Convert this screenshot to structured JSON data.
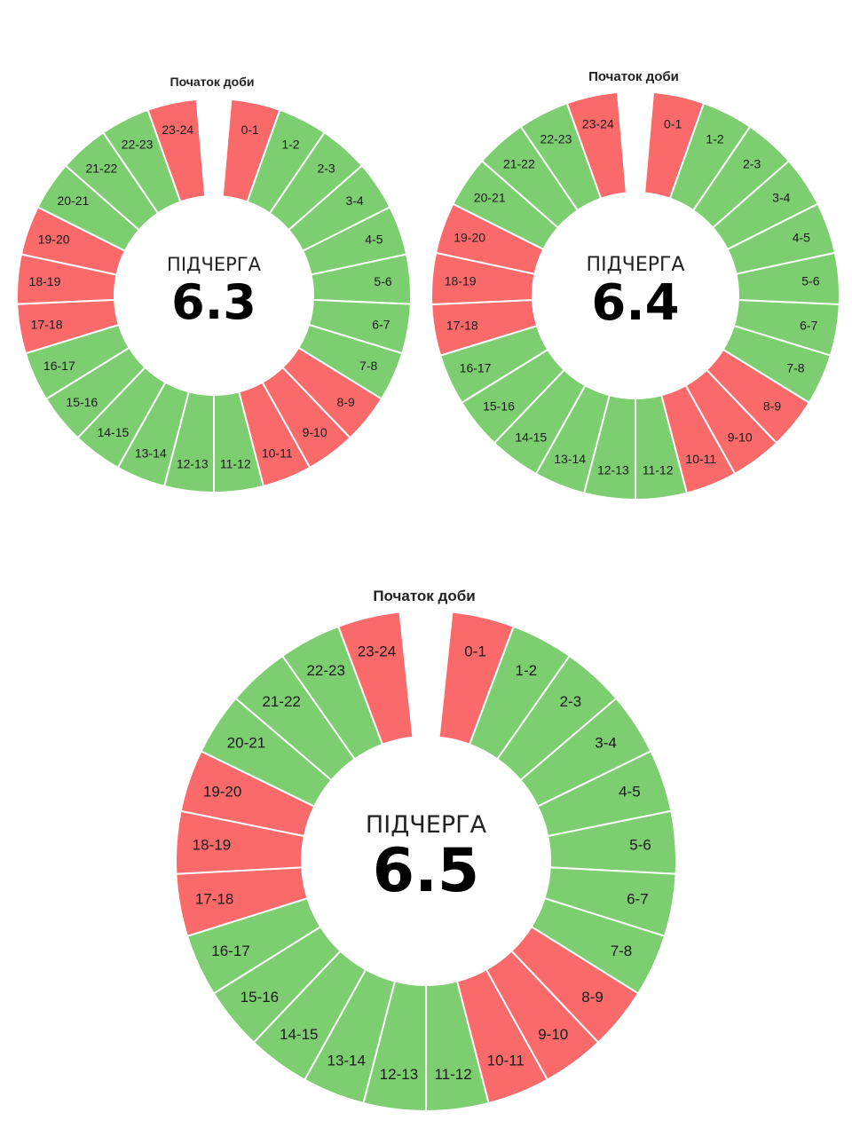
{
  "colors": {
    "on": "#7dcd71",
    "off": "#fb6a6a",
    "divider": "#ffffff"
  },
  "schedules": [
    {
      "start_label": "Початок доби",
      "caption": "ПІДЧЕРГА",
      "number": "6.3",
      "hours": [
        {
          "label": "0-1",
          "state": "off"
        },
        {
          "label": "1-2",
          "state": "on"
        },
        {
          "label": "2-3",
          "state": "on"
        },
        {
          "label": "3-4",
          "state": "on"
        },
        {
          "label": "4-5",
          "state": "on"
        },
        {
          "label": "5-6",
          "state": "on"
        },
        {
          "label": "6-7",
          "state": "on"
        },
        {
          "label": "7-8",
          "state": "on"
        },
        {
          "label": "8-9",
          "state": "off"
        },
        {
          "label": "9-10",
          "state": "off"
        },
        {
          "label": "10-11",
          "state": "off"
        },
        {
          "label": "11-12",
          "state": "on"
        },
        {
          "label": "12-13",
          "state": "on"
        },
        {
          "label": "13-14",
          "state": "on"
        },
        {
          "label": "14-15",
          "state": "on"
        },
        {
          "label": "15-16",
          "state": "on"
        },
        {
          "label": "16-17",
          "state": "on"
        },
        {
          "label": "17-18",
          "state": "off"
        },
        {
          "label": "18-19",
          "state": "off"
        },
        {
          "label": "19-20",
          "state": "off"
        },
        {
          "label": "20-21",
          "state": "on"
        },
        {
          "label": "21-22",
          "state": "on"
        },
        {
          "label": "22-23",
          "state": "on"
        },
        {
          "label": "23-24",
          "state": "off"
        }
      ]
    },
    {
      "start_label": "Початок доби",
      "caption": "ПІДЧЕРГА",
      "number": "6.4",
      "hours": [
        {
          "label": "0-1",
          "state": "off"
        },
        {
          "label": "1-2",
          "state": "on"
        },
        {
          "label": "2-3",
          "state": "on"
        },
        {
          "label": "3-4",
          "state": "on"
        },
        {
          "label": "4-5",
          "state": "on"
        },
        {
          "label": "5-6",
          "state": "on"
        },
        {
          "label": "6-7",
          "state": "on"
        },
        {
          "label": "7-8",
          "state": "on"
        },
        {
          "label": "8-9",
          "state": "off"
        },
        {
          "label": "9-10",
          "state": "off"
        },
        {
          "label": "10-11",
          "state": "off"
        },
        {
          "label": "11-12",
          "state": "on"
        },
        {
          "label": "12-13",
          "state": "on"
        },
        {
          "label": "13-14",
          "state": "on"
        },
        {
          "label": "14-15",
          "state": "on"
        },
        {
          "label": "15-16",
          "state": "on"
        },
        {
          "label": "16-17",
          "state": "on"
        },
        {
          "label": "17-18",
          "state": "off"
        },
        {
          "label": "18-19",
          "state": "off"
        },
        {
          "label": "19-20",
          "state": "off"
        },
        {
          "label": "20-21",
          "state": "on"
        },
        {
          "label": "21-22",
          "state": "on"
        },
        {
          "label": "22-23",
          "state": "on"
        },
        {
          "label": "23-24",
          "state": "off"
        }
      ]
    },
    {
      "start_label": "Початок доби",
      "caption": "ПІДЧЕРГА",
      "number": "6.5",
      "hours": [
        {
          "label": "0-1",
          "state": "off"
        },
        {
          "label": "1-2",
          "state": "on"
        },
        {
          "label": "2-3",
          "state": "on"
        },
        {
          "label": "3-4",
          "state": "on"
        },
        {
          "label": "4-5",
          "state": "on"
        },
        {
          "label": "5-6",
          "state": "on"
        },
        {
          "label": "6-7",
          "state": "on"
        },
        {
          "label": "7-8",
          "state": "on"
        },
        {
          "label": "8-9",
          "state": "off"
        },
        {
          "label": "9-10",
          "state": "off"
        },
        {
          "label": "10-11",
          "state": "off"
        },
        {
          "label": "11-12",
          "state": "on"
        },
        {
          "label": "12-13",
          "state": "on"
        },
        {
          "label": "13-14",
          "state": "on"
        },
        {
          "label": "14-15",
          "state": "on"
        },
        {
          "label": "15-16",
          "state": "on"
        },
        {
          "label": "16-17",
          "state": "on"
        },
        {
          "label": "17-18",
          "state": "off"
        },
        {
          "label": "18-19",
          "state": "off"
        },
        {
          "label": "19-20",
          "state": "off"
        },
        {
          "label": "20-21",
          "state": "on"
        },
        {
          "label": "21-22",
          "state": "on"
        },
        {
          "label": "22-23",
          "state": "on"
        },
        {
          "label": "23-24",
          "state": "off"
        }
      ]
    }
  ]
}
